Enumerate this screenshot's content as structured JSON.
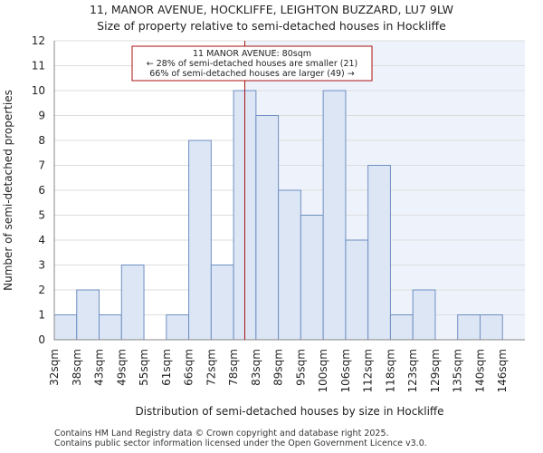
{
  "title": "11, MANOR AVENUE, HOCKLIFFE, LEIGHTON BUZZARD, LU7 9LW",
  "subtitle": "Size of property relative to semi-detached houses in Hockliffe",
  "footer": [
    "Contains HM Land Registry data © Crown copyright and database right 2025.",
    "Contains public sector information licensed under the Open Government Licence v3.0."
  ],
  "colors": {
    "bar_fill": "#dce6f5",
    "bar_stroke": "#6f8fc2",
    "highlight_bg": "#eef2fb",
    "marker": "#aa1111",
    "grid": "#dddddd"
  },
  "chart_data": {
    "type": "bar",
    "title": "Size of property relative to semi-detached houses in Hockliffe",
    "xlabel": "Distribution of semi-detached houses by size in Hockliffe",
    "ylabel": "Number of semi-detached properties",
    "ylim": [
      0,
      12
    ],
    "yticks": [
      0,
      1,
      2,
      3,
      4,
      5,
      6,
      7,
      8,
      9,
      10,
      11,
      12
    ],
    "categories": [
      "32sqm",
      "38sqm",
      "43sqm",
      "49sqm",
      "55sqm",
      "61sqm",
      "66sqm",
      "72sqm",
      "78sqm",
      "83sqm",
      "89sqm",
      "95sqm",
      "100sqm",
      "106sqm",
      "112sqm",
      "118sqm",
      "123sqm",
      "129sqm",
      "135sqm",
      "140sqm",
      "146sqm"
    ],
    "values": [
      1,
      2,
      1,
      3,
      0,
      1,
      8,
      3,
      10,
      9,
      6,
      5,
      10,
      4,
      7,
      1,
      2,
      0,
      1,
      1,
      0
    ],
    "grid": true,
    "highlight": {
      "value_sqm": 80,
      "from_category": "78sqm",
      "label_lines": [
        "11 MANOR AVENUE: 80sqm",
        "← 28% of semi-detached houses are smaller (21)",
        "66% of semi-detached houses are larger (49) →"
      ]
    }
  }
}
